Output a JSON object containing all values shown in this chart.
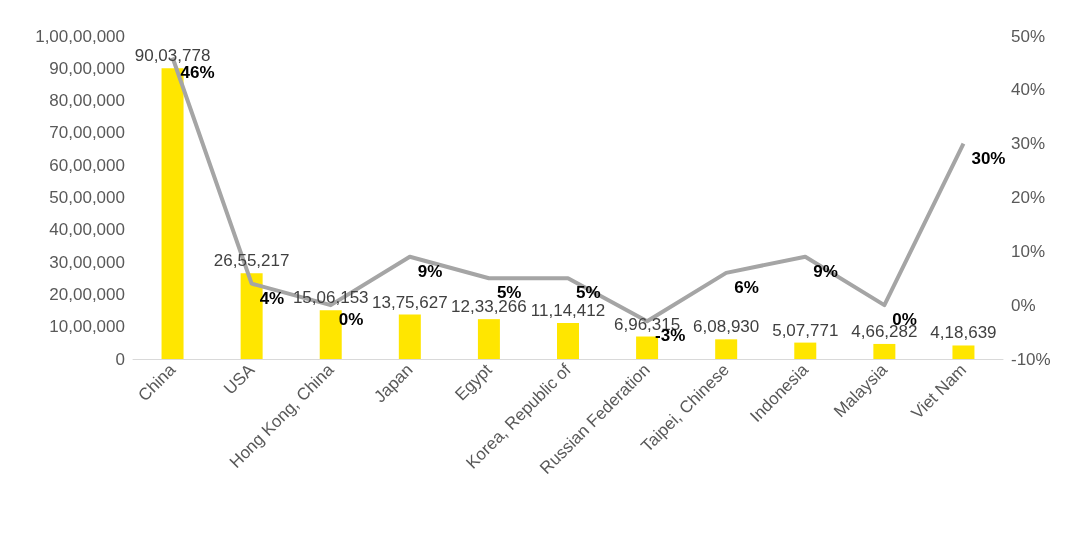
{
  "chart_data": {
    "type": "bar",
    "categories": [
      "China",
      "USA",
      "Hong Kong, China",
      "Japan",
      "Egypt",
      "Korea, Republic of",
      "Russian Federation",
      "Taipei, Chinese",
      "Indonesia",
      "Malaysia",
      "Viet Nam"
    ],
    "series": [
      {
        "color": "#ffe600",
        "values": [
          9003778,
          2655217,
          1506153,
          1375627,
          1233266,
          1114412,
          696315,
          608930,
          507771,
          466282,
          418639
        ],
        "value_labels": [
          "90,03,778",
          "26,55,217",
          "15,06,153",
          "13,75,627",
          "12,33,266",
          "11,14,412",
          "6,96,315",
          "6,08,930",
          "5,07,771",
          "4,66,282",
          "4,18,639"
        ]
      },
      {
        "type": "line",
        "axis": "y2",
        "color": "#a5a5a5",
        "values": [
          46,
          4,
          0,
          9,
          5,
          5,
          -3,
          6,
          9,
          0,
          30
        ],
        "value_labels": [
          "46%",
          "4%",
          "0%",
          "9%",
          "5%",
          "5%",
          "-3%",
          "6%",
          "9%",
          "0%",
          "30%"
        ]
      }
    ],
    "ylim": [
      0,
      10000000
    ],
    "yticks": [
      0,
      {
        "value": 1000000,
        "label": "10,00,000"
      },
      {
        "value": 2000000,
        "label": "20,00,000"
      },
      {
        "value": 3000000,
        "label": "30,00,000"
      },
      {
        "value": 4000000,
        "label": "40,00,000"
      },
      {
        "value": 5000000,
        "label": "50,00,000"
      },
      {
        "value": 6000000,
        "label": "60,00,000"
      },
      {
        "value": 7000000,
        "label": "70,00,000"
      },
      {
        "value": 8000000,
        "label": "80,00,000"
      },
      {
        "value": 9000000,
        "label": "90,00,000"
      },
      {
        "value": 10000000,
        "label": "1,00,00,000"
      }
    ],
    "y2lim": [
      -10,
      50
    ],
    "y2ticks": [
      {
        "value": -10,
        "label": "-10%"
      },
      {
        "value": 0,
        "label": "0%"
      },
      {
        "value": 10,
        "label": "10%"
      },
      {
        "value": 20,
        "label": "20%"
      },
      {
        "value": 30,
        "label": "30%"
      },
      {
        "value": 40,
        "label": "40%"
      },
      {
        "value": 50,
        "label": "50%"
      }
    ],
    "grid": false,
    "marker": "none",
    "line_style": "solid"
  }
}
